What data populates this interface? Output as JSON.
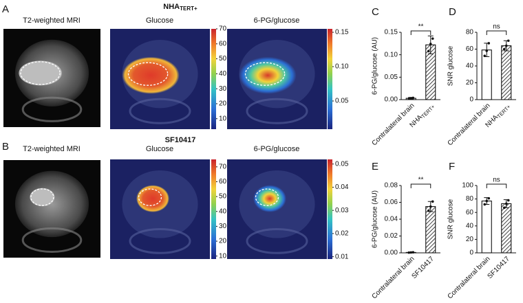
{
  "panel_labels": [
    "A",
    "B",
    "C",
    "D",
    "E",
    "F"
  ],
  "rows": [
    {
      "title": "NHA",
      "title_sub": "TERT+",
      "column_labels": [
        "T2-weighted MRI",
        "Glucose",
        "6-PG/glucose"
      ],
      "colorbars": [
        {
          "lim": [
            3,
            70
          ],
          "ticks": [
            10,
            20,
            30,
            40,
            50,
            60,
            70
          ]
        },
        {
          "lim": [
            0.009,
            0.155
          ],
          "ticks": [
            0.05,
            {
              "value": 0.1,
              "label": "0.10"
            },
            0.15
          ]
        }
      ]
    },
    {
      "title": "SF10417",
      "column_labels": [
        "T2-weighted MRI",
        "Glucose",
        "6-PG/glucose"
      ],
      "colorbars": [
        {
          "lim": [
            8,
            75
          ],
          "ticks": [
            10,
            20,
            30,
            40,
            50,
            60,
            70
          ]
        },
        {
          "lim": [
            0.009,
            0.052
          ],
          "ticks": [
            0.01,
            0.02,
            0.03,
            0.04,
            0.05
          ]
        }
      ]
    }
  ],
  "chart_data": [
    {
      "type": "bar",
      "y_label": "6-PG/glucose (AU)",
      "categories": [
        "Contralateral brain",
        "NHA"
      ],
      "category_subscripts": {
        "1": "TERT+"
      },
      "values": [
        0.003,
        0.122
      ],
      "errors": [
        0.002,
        0.02
      ],
      "points": [
        [
          0.002,
          0.003,
          0.004
        ],
        [
          0.108,
          0.124,
          0.136
        ]
      ],
      "hatch": [
        false,
        true
      ],
      "color": "#ffffff",
      "edge_color": "#111111",
      "ylim": [
        0,
        0.15
      ],
      "yticks": [
        {
          "value": 0,
          "label": "0.00"
        },
        0.05,
        {
          "value": 0.1,
          "label": "0.10"
        },
        0.15
      ],
      "significance": "**"
    },
    {
      "type": "bar",
      "y_label": "SNR glucose",
      "categories": [
        "Contralateral brain",
        "NHA"
      ],
      "category_subscripts": {
        "1": "TERT+"
      },
      "values": [
        59,
        64
      ],
      "errors": [
        8,
        6
      ],
      "points": [
        [
          52,
          58,
          67
        ],
        [
          60,
          64,
          70
        ]
      ],
      "hatch": [
        false,
        true
      ],
      "color": "#ffffff",
      "edge_color": "#111111",
      "ylim": [
        0,
        80
      ],
      "yticks": [
        0,
        20,
        40,
        60,
        80
      ],
      "significance": "ns"
    },
    {
      "type": "bar",
      "y_label": "6-PG/glucose (AU)",
      "categories": [
        "Contralateral brain",
        "SF10417"
      ],
      "values": [
        0.0005,
        0.055
      ],
      "errors": [
        0.0003,
        0.006
      ],
      "points": [
        [
          0.0003,
          0.0005,
          0.0007
        ],
        [
          0.05,
          0.055,
          0.061
        ]
      ],
      "hatch": [
        false,
        true
      ],
      "color": "#ffffff",
      "edge_color": "#111111",
      "ylim": [
        0,
        0.08
      ],
      "yticks": [
        {
          "value": 0,
          "label": "0.00"
        },
        0.02,
        0.04,
        0.06,
        0.08
      ],
      "significance": "**"
    },
    {
      "type": "bar",
      "y_label": "SNR glucose",
      "categories": [
        "Contralateral brain",
        "SF10417"
      ],
      "values": [
        77,
        73
      ],
      "errors": [
        5,
        6
      ],
      "points": [
        [
          72,
          77,
          81
        ],
        [
          67,
          73,
          78
        ]
      ],
      "hatch": [
        false,
        true
      ],
      "color": "#ffffff",
      "edge_color": "#111111",
      "ylim": [
        0,
        100
      ],
      "yticks": [
        0,
        20,
        40,
        60,
        80,
        100
      ],
      "significance": "ns"
    }
  ]
}
